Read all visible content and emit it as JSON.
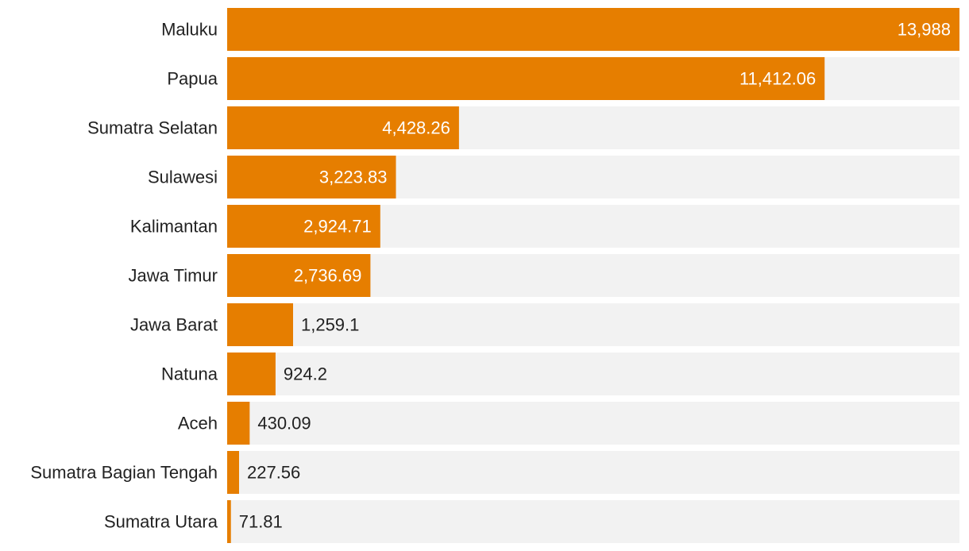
{
  "chart_data": {
    "type": "bar",
    "orientation": "horizontal",
    "categories": [
      "Maluku",
      "Papua",
      "Sumatra Selatan",
      "Sulawesi",
      "Kalimantan",
      "Jawa Timur",
      "Jawa Barat",
      "Natuna",
      "Aceh",
      "Sumatra Bagian Tengah",
      "Sumatra Utara"
    ],
    "values": [
      13988,
      11412.06,
      4428.26,
      3223.83,
      2924.71,
      2736.69,
      1259.1,
      924.2,
      430.09,
      227.56,
      71.81
    ],
    "value_labels": [
      "13,988",
      "11,412.06",
      "4,428.26",
      "3,223.83",
      "2,924.71",
      "2,736.69",
      "1,259.1",
      "924.2",
      "430.09",
      "227.56",
      "71.81"
    ],
    "xlim": [
      0,
      13988
    ],
    "title": "",
    "xlabel": "",
    "ylabel": "",
    "grid": false,
    "colors": {
      "bar": "#e67e00",
      "track": "#f2f2f2",
      "label_inside": "#ffffff",
      "label_outside": "#222222"
    }
  }
}
